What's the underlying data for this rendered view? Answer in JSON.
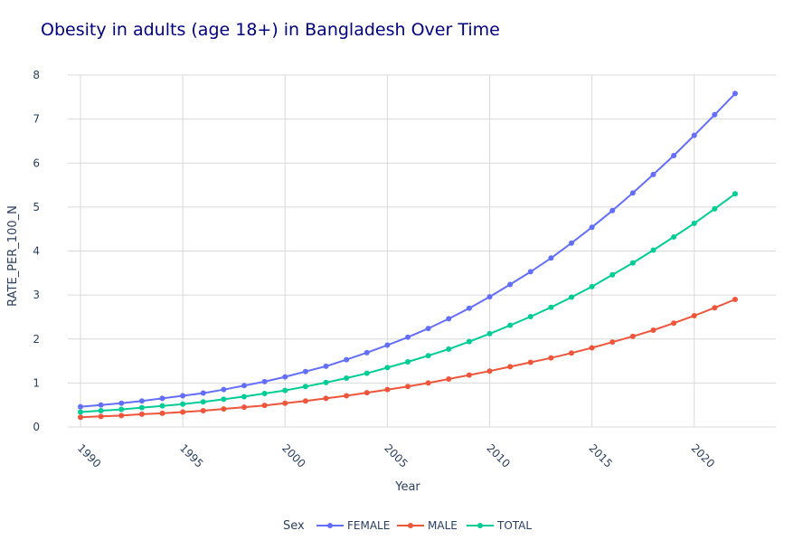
{
  "chart_data": {
    "type": "line",
    "title": "Obesity in adults (age 18+) in Bangladesh Over Time",
    "xlabel": "Year",
    "ylabel": "RATE_PER_100_N",
    "xlim": [
      1990,
      2022
    ],
    "ylim": [
      0,
      8
    ],
    "x_ticks": [
      "1990",
      "1995",
      "2000",
      "2005",
      "2010",
      "2015",
      "2020"
    ],
    "y_ticks": [
      "0",
      "1",
      "2",
      "3",
      "4",
      "5",
      "6",
      "7",
      "8"
    ],
    "grid": true,
    "legend": {
      "title": "Sex",
      "placement": "bottom"
    },
    "x": [
      1990,
      1991,
      1992,
      1993,
      1994,
      1995,
      1996,
      1997,
      1998,
      1999,
      2000,
      2001,
      2002,
      2003,
      2004,
      2005,
      2006,
      2007,
      2008,
      2009,
      2010,
      2011,
      2012,
      2013,
      2014,
      2015,
      2016,
      2017,
      2018,
      2019,
      2020,
      2021,
      2022
    ],
    "series": [
      {
        "name": "FEMALE",
        "color": "#636efa",
        "values": [
          0.46,
          0.5,
          0.54,
          0.59,
          0.65,
          0.71,
          0.77,
          0.85,
          0.94,
          1.03,
          1.14,
          1.26,
          1.38,
          1.53,
          1.69,
          1.86,
          2.04,
          2.24,
          2.46,
          2.7,
          2.96,
          3.24,
          3.53,
          3.84,
          4.18,
          4.54,
          4.92,
          5.32,
          5.74,
          6.17,
          6.63,
          7.1,
          7.58
        ]
      },
      {
        "name": "MALE",
        "color": "#ef553b",
        "values": [
          0.22,
          0.24,
          0.26,
          0.29,
          0.31,
          0.34,
          0.37,
          0.41,
          0.45,
          0.49,
          0.54,
          0.59,
          0.65,
          0.71,
          0.78,
          0.85,
          0.92,
          1.0,
          1.09,
          1.18,
          1.27,
          1.37,
          1.47,
          1.57,
          1.68,
          1.8,
          1.93,
          2.06,
          2.2,
          2.36,
          2.53,
          2.71,
          2.9
        ]
      },
      {
        "name": "TOTAL",
        "color": "#00cc96",
        "values": [
          0.34,
          0.37,
          0.4,
          0.44,
          0.48,
          0.52,
          0.57,
          0.63,
          0.69,
          0.76,
          0.83,
          0.92,
          1.01,
          1.11,
          1.22,
          1.35,
          1.48,
          1.62,
          1.77,
          1.94,
          2.12,
          2.31,
          2.51,
          2.72,
          2.95,
          3.19,
          3.46,
          3.73,
          4.02,
          4.32,
          4.63,
          4.96,
          5.3
        ]
      }
    ]
  }
}
